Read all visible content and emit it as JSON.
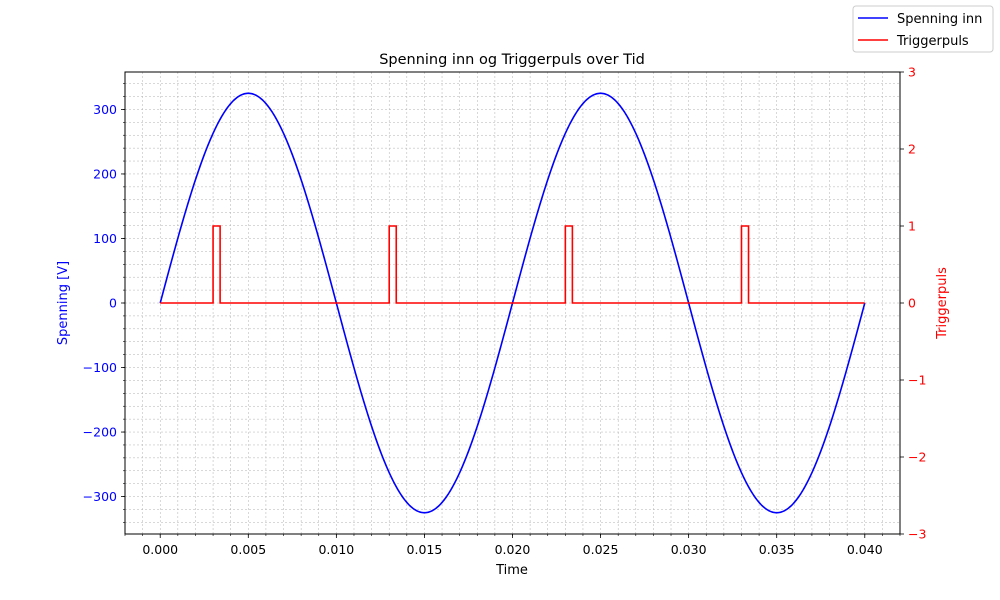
{
  "chart_data": {
    "type": "line",
    "title": "Spenning inn og Triggerpuls over Tid",
    "xlabel": "Time",
    "ylabel_left": "Spenning [V]",
    "ylabel_right": "Triggerpuls",
    "xlim": [
      -0.002,
      0.042
    ],
    "ylim_left": [
      -358,
      358
    ],
    "ylim_right": [
      -3,
      3
    ],
    "x_ticks": [
      "0.000",
      "0.005",
      "0.010",
      "0.015",
      "0.020",
      "0.025",
      "0.030",
      "0.035",
      "0.040"
    ],
    "x_tick_values": [
      0,
      0.005,
      0.01,
      0.015,
      0.02,
      0.025,
      0.03,
      0.035,
      0.04
    ],
    "y_left_ticks": [
      "−300",
      "−200",
      "−100",
      "0",
      "100",
      "200",
      "300"
    ],
    "y_left_tick_values": [
      -300,
      -200,
      -100,
      0,
      100,
      200,
      300
    ],
    "y_right_ticks": [
      "−3",
      "−2",
      "−1",
      "0",
      "1",
      "2",
      "3"
    ],
    "y_right_tick_values": [
      -3,
      -2,
      -1,
      0,
      1,
      2,
      3
    ],
    "grid": true,
    "legend_position": "top-right (outside)",
    "series": [
      {
        "name": "Spenning inn",
        "axis": "left",
        "color": "#0000ff",
        "function": "sine",
        "amplitude": 325,
        "frequency_hz": 50,
        "x_range": [
          0,
          0.04
        ]
      },
      {
        "name": "Triggerpuls",
        "axis": "right",
        "color": "#ff0000",
        "function": "step",
        "x": [
          0,
          0.003,
          0.003,
          0.0034,
          0.0034,
          0.013,
          0.013,
          0.0134,
          0.0134,
          0.023,
          0.023,
          0.0234,
          0.0234,
          0.033,
          0.033,
          0.0334,
          0.0334,
          0.04
        ],
        "y": [
          0,
          0,
          1,
          1,
          0,
          0,
          1,
          1,
          0,
          0,
          1,
          1,
          0,
          0,
          1,
          1,
          0,
          0
        ]
      }
    ],
    "axis_colors": {
      "left": "#0000ff",
      "right": "#ff0000",
      "x": "#000000"
    }
  }
}
